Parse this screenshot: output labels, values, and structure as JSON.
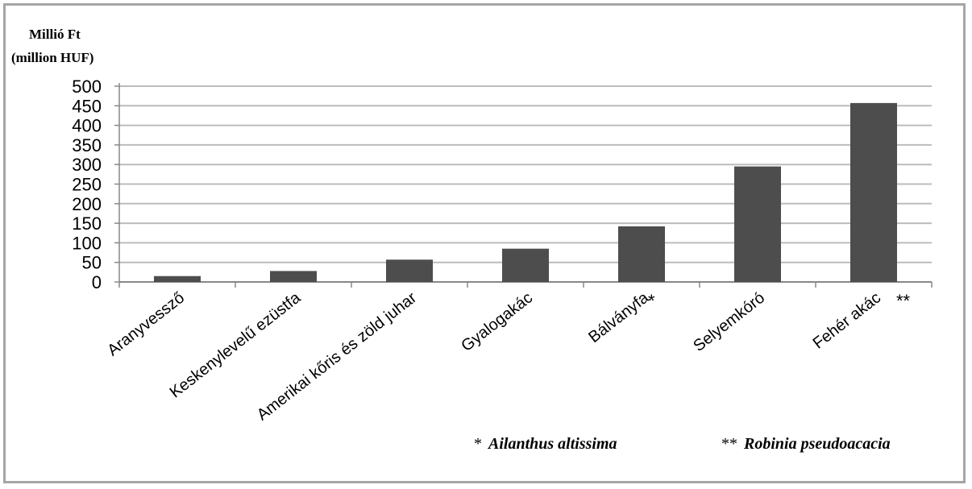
{
  "chart_data": {
    "type": "bar",
    "ylabel_line1": "Millió  Ft",
    "ylabel_line2": "(million  HUF)",
    "categories": [
      "Aranyvessző",
      "Keskenylevelű ezüstfa",
      "Amerikai kőris és zöld juhar",
      "Gyalogakác",
      "Bálványfa",
      "Selyemkóró",
      "Fehér akác"
    ],
    "category_marks": [
      "",
      "",
      "",
      "",
      "*",
      "",
      "**"
    ],
    "values": [
      15,
      28,
      57,
      85,
      142,
      295,
      457
    ],
    "ylim": [
      0,
      500
    ],
    "yticks": [
      0,
      50,
      100,
      150,
      200,
      250,
      300,
      350,
      400,
      450,
      500
    ],
    "grid": true,
    "bar_color": "#4d4d4d",
    "grid_color": "#bcbcbc"
  },
  "footnotes": [
    {
      "mark": "*",
      "name": "Ailanthus altissima"
    },
    {
      "mark": "**",
      "name": "Robinia pseudoacacia"
    }
  ]
}
